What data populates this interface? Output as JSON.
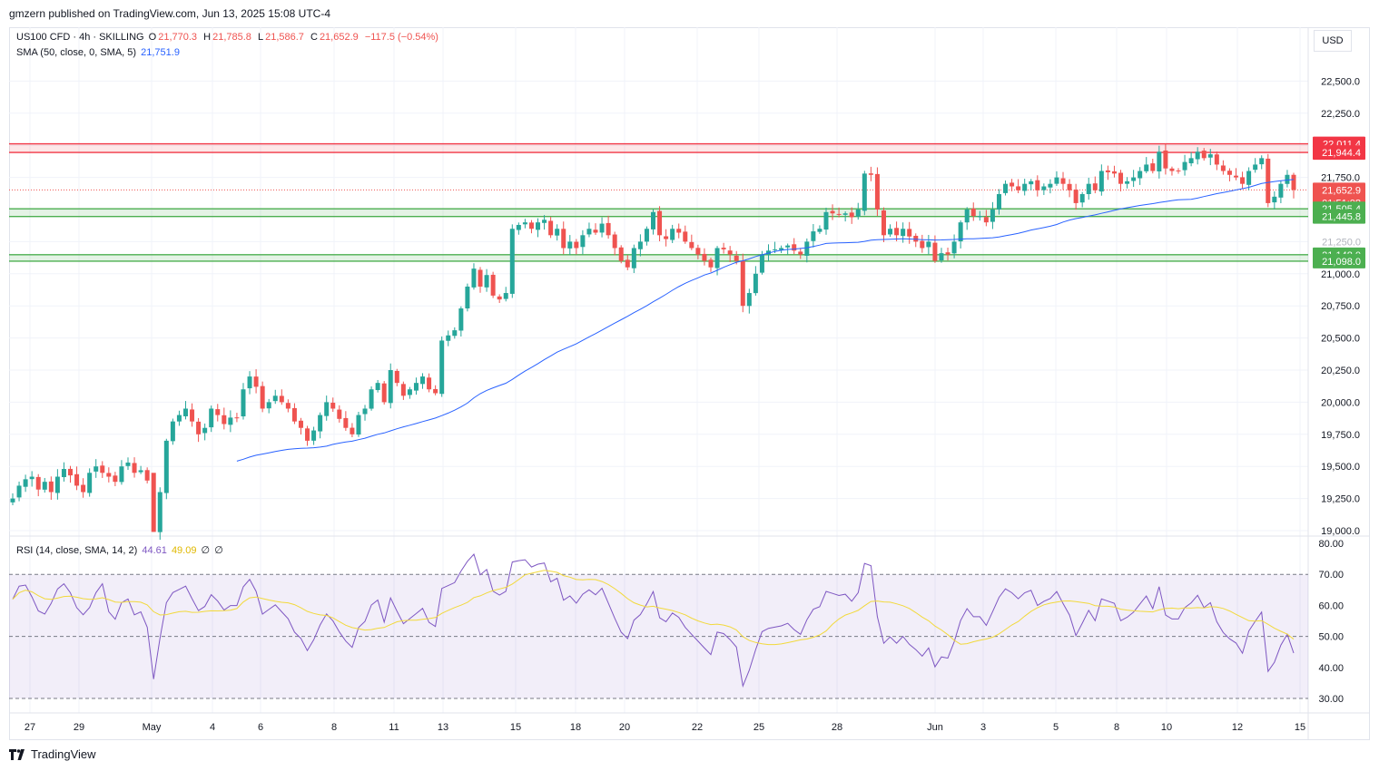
{
  "header": {
    "publisher": "gmzern published on TradingView.com, Jun 13, 2025 15:08 UTC-4"
  },
  "legend": {
    "symbol": "US100 CFD · 4h · SKILLING",
    "o_label": "O",
    "o": "21,770.3",
    "h_label": "H",
    "h": "21,785.8",
    "l_label": "L",
    "l": "21,586.7",
    "c_label": "C",
    "c": "21,652.9",
    "chg": "−117.5 (−0.54%)",
    "sma_label": "SMA (50, close, 0, SMA, 5)",
    "sma_value": "21,751.9",
    "rsi_label": "RSI (14, close, SMA, 14, 2)",
    "rsi_value": "44.61",
    "rsi_sma_value": "49.09",
    "rsi_extra1": "∅",
    "rsi_extra2": "∅"
  },
  "currency": "USD",
  "brand": "TradingView",
  "colors": {
    "up": "#26a69a",
    "down": "#ef5350",
    "sma": "#2962ff",
    "rsi": "#7e57c2",
    "rsi_sma": "#f2d93b",
    "resistance": "#f23645",
    "support": "#4caf50"
  },
  "price_labels": {
    "last_price": "21,652.9",
    "countdown": "01:51:08",
    "resistance_top": "22,011.4",
    "resistance_bottom": "21,944.4",
    "support1_top": "21,505.4",
    "support1_bottom": "21,445.8",
    "support2_top": "21,148.0",
    "support2_bottom": "21,098.0",
    "hidden_tick": "21,250.0"
  },
  "chart_data": [
    {
      "type": "candlestick",
      "symbol": "US100 CFD",
      "timeframe": "4h",
      "y_ticks": [
        19000,
        19250,
        19500,
        19750,
        20000,
        20250,
        20500,
        20750,
        21000,
        21250,
        21500,
        21750,
        22000,
        22250,
        22500
      ],
      "y_tick_labels": [
        "19,000.0",
        "19,250.0",
        "19,500.0",
        "19,750.0",
        "20,000.0",
        "20,250.0",
        "20,500.0",
        "20,750.0",
        "21,000.0",
        "21,250.0",
        "21,500.0",
        "21,750.0",
        "22,000.0",
        "22,250.0",
        "22,500.0"
      ],
      "ylim": [
        18990,
        22840
      ],
      "x_ticks": [
        "27",
        "29",
        "May",
        "4",
        "6",
        "8",
        "11",
        "13",
        "15",
        "18",
        "20",
        "22",
        "25",
        "28",
        "Jun",
        "3",
        "5",
        "8",
        "10",
        "12",
        "15"
      ],
      "zones": [
        {
          "kind": "resistance",
          "from": 21944.4,
          "to": 22011.4
        },
        {
          "kind": "support",
          "from": 21445.8,
          "to": 21505.4
        },
        {
          "kind": "support",
          "from": 21098.0,
          "to": 21148.0
        }
      ],
      "last_price": 21652.9,
      "closes": [
        19250,
        19350,
        19400,
        19420,
        19320,
        19380,
        19300,
        19420,
        19480,
        19430,
        19350,
        19300,
        19450,
        19500,
        19450,
        19420,
        19380,
        19500,
        19530,
        19450,
        19470,
        19390,
        18990,
        19300,
        19700,
        19850,
        19900,
        19950,
        19850,
        19750,
        19800,
        19950,
        19900,
        19830,
        19880,
        19880,
        20100,
        20200,
        20120,
        19950,
        20000,
        20050,
        20000,
        19950,
        19850,
        19800,
        19700,
        19780,
        19900,
        20000,
        19950,
        19870,
        19800,
        19750,
        19900,
        19950,
        20100,
        20150,
        20000,
        20250,
        20150,
        20050,
        20100,
        20150,
        20200,
        20100,
        20070,
        20480,
        20520,
        20560,
        20730,
        20900,
        21040,
        20900,
        20990,
        20830,
        20800,
        20850,
        21350,
        21380,
        21400,
        21350,
        21400,
        21420,
        21300,
        21350,
        21200,
        21250,
        21200,
        21300,
        21350,
        21320,
        21390,
        21300,
        21200,
        21100,
        21050,
        21200,
        21250,
        21350,
        21480,
        21300,
        21270,
        21350,
        21320,
        21250,
        21200,
        21150,
        21100,
        21050,
        21200,
        21190,
        21150,
        21100,
        20750,
        20850,
        21000,
        21150,
        21180,
        21190,
        21200,
        21220,
        21180,
        21150,
        21250,
        21330,
        21350,
        21480,
        21470,
        21460,
        21470,
        21440,
        21500,
        21780,
        21770,
        21500,
        21300,
        21350,
        21300,
        21350,
        21290,
        21250,
        21200,
        21250,
        21100,
        21160,
        21150,
        21250,
        21400,
        21500,
        21450,
        21450,
        21400,
        21500,
        21620,
        21700,
        21680,
        21650,
        21700,
        21720,
        21650,
        21680,
        21700,
        21750,
        21700,
        21650,
        21550,
        21620,
        21700,
        21650,
        21800,
        21790,
        21780,
        21700,
        21720,
        21750,
        21800,
        21850,
        21800,
        21950,
        21820,
        21800,
        21800,
        21870,
        21900,
        21950,
        21900,
        21930,
        21850,
        21800,
        21770,
        21750,
        21700,
        21800,
        21850,
        21900,
        21550,
        21600,
        21700,
        21770,
        21653
      ],
      "sma50_value": 21751.9
    },
    {
      "type": "line",
      "name": "RSI (14, close, SMA, 14, 2)",
      "y_ticks": [
        30,
        40,
        50,
        60,
        70,
        80
      ],
      "y_tick_labels": [
        "30.00",
        "40.00",
        "50.00",
        "60.00",
        "70.00",
        "80.00"
      ],
      "ylim": [
        25,
        80
      ],
      "bands": {
        "upper": 70,
        "middle": 50,
        "lower": 30
      },
      "rsi_last": 44.61,
      "rsi_sma_last": 49.09
    }
  ]
}
